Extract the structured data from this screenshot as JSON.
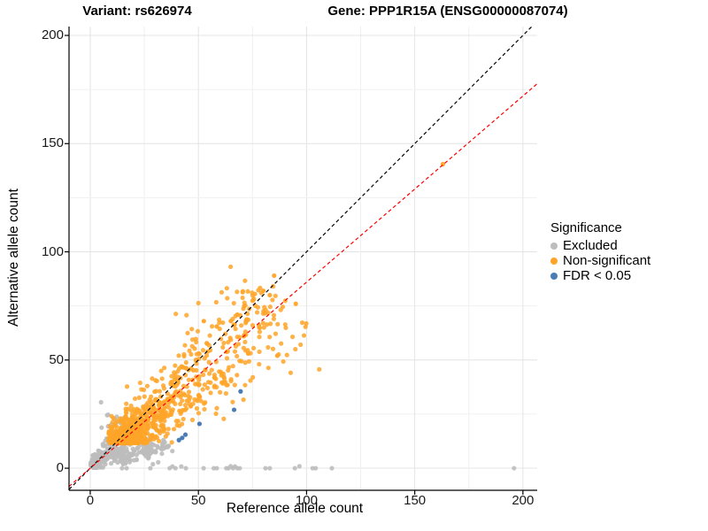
{
  "titles": {
    "left": "Variant: rs626974",
    "right": "Gene: PPP1R15A (ENSG00000087074)"
  },
  "legend": {
    "title": "Significance",
    "items": [
      {
        "key": "excluded",
        "label": "Excluded",
        "color": "#BDBDBD"
      },
      {
        "key": "nonsignificant",
        "label": "Non-significant",
        "color": "#FFA428"
      },
      {
        "key": "fdr",
        "label": "FDR < 0.05",
        "color": "#4A7CB5"
      }
    ]
  },
  "chart_data": {
    "type": "scatter",
    "xlabel": "Reference allele count",
    "ylabel": "Alternative allele count",
    "xlim": [
      -9.8,
      206.6
    ],
    "ylim": [
      -10.2,
      204.1
    ],
    "xticks": [
      0,
      50,
      100,
      150,
      200
    ],
    "yticks": [
      0,
      50,
      100,
      150,
      200
    ],
    "grid": {
      "minor_step": 25,
      "major_color": "#E4E4E4",
      "minor_color": "#F0F0F0"
    },
    "colors": {
      "excluded": "#BDBDBD",
      "nonsignificant": "#FFA428",
      "fdr": "#4A7CB5"
    },
    "lines": [
      {
        "name": "identity",
        "slope": 1.0,
        "intercept": 0,
        "color": "#000000",
        "dash": "4 3"
      },
      {
        "name": "fitted-ratio",
        "slope": 0.86,
        "intercept": 0,
        "color": "#FF0000",
        "dash": "4 3"
      }
    ],
    "clusters": [
      {
        "name": "excluded-low-count-wedge",
        "group": "excluded",
        "n": 260,
        "seed": 11,
        "s_base": 1.5,
        "s_range": 36,
        "s_pow": 1.5,
        "s_jitter": 0,
        "d_k": 0.0,
        "d_sd_base": 1.2,
        "d_sd_k": 0.14,
        "x_floor": 0.2,
        "y_floor": 0.2
      },
      {
        "name": "excluded-under-band",
        "group": "excluded",
        "n": 120,
        "seed": 23,
        "s_base": 15,
        "s_range": 32,
        "s_pow": 1.0,
        "s_jitter": 0,
        "d_k": 0.52,
        "d_sd_base": 3.5,
        "d_sd_k": 0.0,
        "x_floor": 6,
        "y_floor": 1.8
      },
      {
        "name": "nonsignificant-main",
        "group": "nonsignificant",
        "n": 950,
        "seed": 47,
        "s_base": 27,
        "s_range": 140,
        "s_pow": 3.0,
        "s_jitter": 5,
        "d_k": 0.07,
        "d_sd_base": 2.8,
        "d_sd_k": 0.1,
        "x_floor": 8.5,
        "y_floor": 11.5
      }
    ],
    "points_excluded_zero_row": [
      [
        14.7,
        0
      ],
      [
        16.8,
        0
      ],
      [
        27.8,
        0
      ],
      [
        36.7,
        0
      ],
      [
        38,
        0.8
      ],
      [
        39.4,
        0
      ],
      [
        42.1,
        0.8
      ],
      [
        44.2,
        0
      ],
      [
        52.4,
        0
      ],
      [
        57.1,
        0
      ],
      [
        58.5,
        0
      ],
      [
        62.9,
        0
      ],
      [
        63.9,
        0
      ],
      [
        64.9,
        0.9
      ],
      [
        66,
        0
      ],
      [
        66.9,
        0.8
      ],
      [
        68,
        0
      ],
      [
        69.1,
        0
      ],
      [
        81,
        0
      ],
      [
        83,
        0
      ],
      [
        94.6,
        0
      ],
      [
        96.7,
        0.9
      ],
      [
        102.8,
        0
      ],
      [
        104.2,
        0
      ],
      [
        111.7,
        0
      ],
      [
        195.9,
        0
      ]
    ],
    "points_excluded_stray": [
      [
        5,
        30.5
      ],
      [
        7.8,
        24.5
      ]
    ],
    "points_nonsignificant_outliers": [
      [
        163,
        140.5
      ],
      [
        95,
        76
      ],
      [
        86.5,
        52
      ],
      [
        85,
        89
      ],
      [
        83,
        80
      ],
      [
        80,
        82
      ],
      [
        78,
        66
      ],
      [
        73,
        53
      ],
      [
        71,
        61
      ],
      [
        68,
        71
      ],
      [
        65,
        68
      ],
      [
        58.5,
        65.5
      ],
      [
        52.5,
        68
      ]
    ],
    "points_fdr": [
      [
        69.5,
        35.5
      ],
      [
        66.5,
        27
      ],
      [
        50.5,
        20.5
      ],
      [
        44,
        15.5
      ],
      [
        42.5,
        14
      ],
      [
        41,
        13
      ]
    ]
  }
}
